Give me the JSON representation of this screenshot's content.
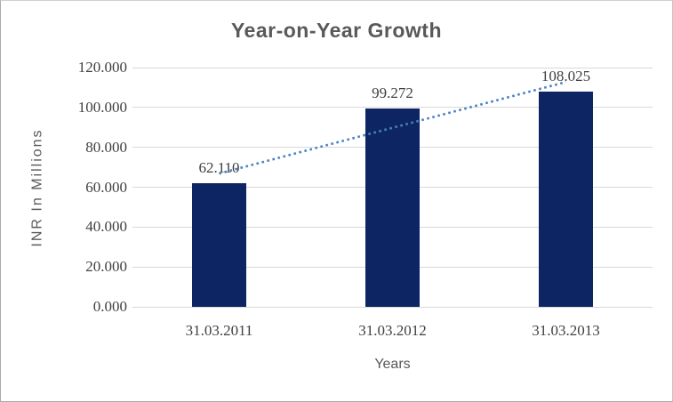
{
  "chart_data": {
    "type": "bar",
    "title": "Year-on-Year Growth",
    "xlabel": "Years",
    "ylabel": "INR In Millions",
    "categories": [
      "31.03.2011",
      "31.03.2012",
      "31.03.2013"
    ],
    "values": [
      62.11,
      99.272,
      108.025
    ],
    "data_labels": [
      "62.110",
      "99.272",
      "108.025"
    ],
    "y_ticks": [
      {
        "label": "0.000",
        "value": 0
      },
      {
        "label": "20.000",
        "value": 20
      },
      {
        "label": "40.000",
        "value": 40
      },
      {
        "label": "60.000",
        "value": 60
      },
      {
        "label": "80.000",
        "value": 80
      },
      {
        "label": "100.000",
        "value": 100
      },
      {
        "label": "120.000",
        "value": 120
      }
    ],
    "ylim": [
      0,
      120
    ],
    "grid": true,
    "legend": false,
    "trendline": {
      "style": "dotted",
      "start_value": 66.85,
      "end_value": 112.76
    },
    "colors": {
      "bar": "#0d2562",
      "trendline": "#4a80c4",
      "gridline": "#d9d9d9",
      "title_text": "#595959",
      "tick_text": "#404040",
      "axis_title_text": "#595959"
    }
  }
}
